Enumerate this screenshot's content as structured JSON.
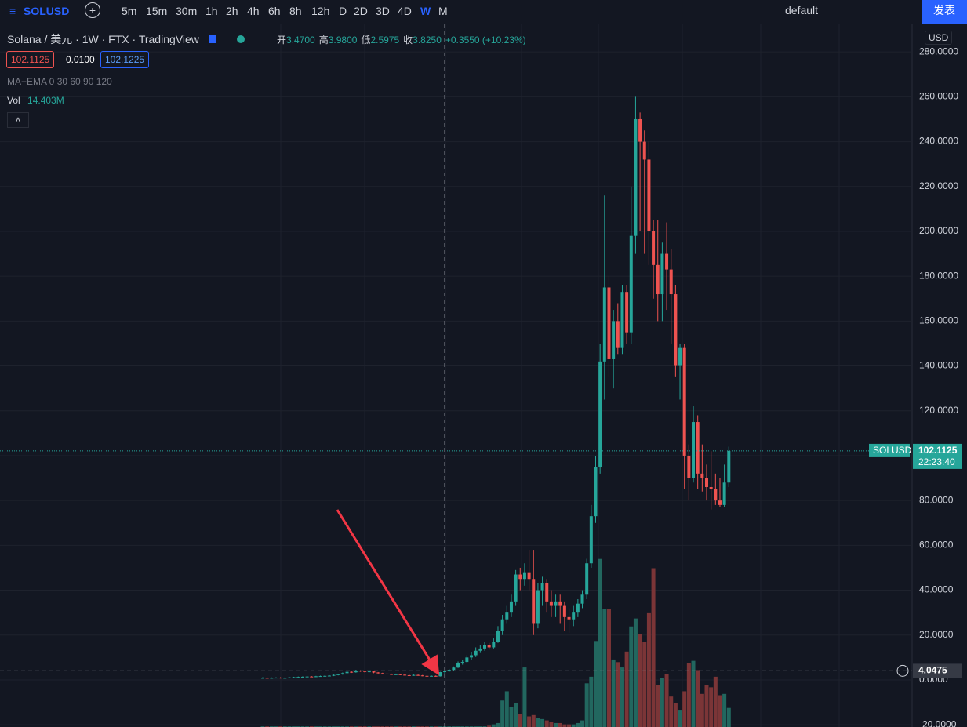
{
  "toolbar": {
    "symbol": "SOLUSD",
    "intervals": [
      "5m",
      "15m",
      "30m",
      "1h",
      "2h",
      "4h",
      "6h",
      "8h",
      "12h",
      "D",
      "2D",
      "3D",
      "4D",
      "W",
      "M"
    ],
    "layout_name": "default",
    "publish": "发表"
  },
  "legend": {
    "title": "Solana / 美元",
    "interval": "1W",
    "exchange": "FTX",
    "source": "TradingView",
    "ohlc": [
      {
        "label": "开",
        "value": "3.4700"
      },
      {
        "label": "高",
        "value": "3.9800"
      },
      {
        "label": "低",
        "value": "2.5975"
      },
      {
        "label": "收",
        "value": "3.8250"
      }
    ],
    "change": "+0.3550 (+10.23%)",
    "bid": "102.1125",
    "spread": "0.0100",
    "ask": "102.1225",
    "indicator": "MA+EMA 0 30 60 90 120",
    "volume_label": "Vol",
    "volume_value": "14.403M",
    "currency": "USD"
  },
  "chart_data": {
    "type": "candlestick",
    "symbol_tag": "SOLUSD",
    "last_price": 102.1125,
    "last_price_label": "102.1125",
    "countdown": "22:23:40",
    "crosshair_price": 4.0475,
    "crosshair_label": "4.0475",
    "crosshair_index": 41,
    "ylim": [
      -21,
      292.3
    ],
    "yticks": [
      {
        "value": -20,
        "label": "-20.0000"
      },
      {
        "value": 0,
        "label": "0.0000"
      },
      {
        "value": 20,
        "label": "20.0000"
      },
      {
        "value": 40,
        "label": "40.0000"
      },
      {
        "value": 60,
        "label": "60.0000"
      },
      {
        "value": 80,
        "label": "80.0000"
      },
      {
        "value": 100,
        "label": "100.0000"
      },
      {
        "value": 120,
        "label": "120.0000"
      },
      {
        "value": 140,
        "label": "140.0000"
      },
      {
        "value": 160,
        "label": "160.0000"
      },
      {
        "value": 180,
        "label": "180.0000"
      },
      {
        "value": 200,
        "label": "200.0000"
      },
      {
        "value": 220,
        "label": "220.0000"
      },
      {
        "value": 240,
        "label": "240.0000"
      },
      {
        "value": 260,
        "label": "260.0000"
      },
      {
        "value": 280,
        "label": "280.0000"
      }
    ],
    "up_color": "#26a69a",
    "down_color": "#ef5350",
    "vol_lim": [
      0,
      160
    ],
    "candles": [
      [
        0.8,
        1.2,
        0.6,
        0.9
      ],
      [
        0.9,
        1.1,
        0.6,
        0.8
      ],
      [
        0.8,
        1.1,
        0.6,
        0.9
      ],
      [
        0.9,
        1.2,
        0.7,
        1.0
      ],
      [
        1.0,
        1.2,
        0.6,
        0.8
      ],
      [
        0.8,
        1.1,
        0.6,
        0.9
      ],
      [
        0.9,
        1.3,
        0.7,
        1.1
      ],
      [
        1.1,
        1.4,
        0.9,
        1.2
      ],
      [
        1.2,
        1.5,
        1.0,
        1.3
      ],
      [
        1.3,
        1.6,
        1.1,
        1.4
      ],
      [
        1.4,
        1.7,
        1.2,
        1.5
      ],
      [
        1.5,
        1.7,
        1.2,
        1.4
      ],
      [
        1.4,
        1.8,
        1.2,
        1.6
      ],
      [
        1.6,
        1.9,
        1.4,
        1.7
      ],
      [
        1.7,
        2.0,
        1.5,
        1.8
      ],
      [
        1.8,
        2.1,
        1.6,
        1.9
      ],
      [
        1.9,
        2.4,
        1.7,
        2.2
      ],
      [
        2.2,
        2.7,
        2.0,
        2.5
      ],
      [
        2.5,
        3.3,
        2.3,
        3.0
      ],
      [
        3.0,
        3.9,
        2.8,
        3.6
      ],
      [
        3.6,
        3.8,
        3.1,
        3.4
      ],
      [
        3.4,
        4.5,
        3.2,
        4.1
      ],
      [
        4.1,
        4.3,
        3.6,
        3.9
      ],
      [
        3.9,
        4.1,
        3.3,
        3.6
      ],
      [
        3.6,
        4.0,
        3.4,
        3.8
      ],
      [
        3.8,
        4.0,
        3.0,
        3.3
      ],
      [
        3.3,
        3.5,
        2.8,
        3.0
      ],
      [
        3.0,
        3.2,
        2.6,
        2.8
      ],
      [
        2.8,
        3.0,
        2.4,
        2.6
      ],
      [
        2.6,
        2.8,
        2.2,
        2.4
      ],
      [
        2.4,
        2.8,
        2.2,
        2.5
      ],
      [
        2.5,
        2.7,
        2.1,
        2.3
      ],
      [
        2.3,
        2.5,
        1.9,
        2.1
      ],
      [
        2.1,
        2.3,
        1.8,
        2.0
      ],
      [
        2.0,
        2.4,
        1.8,
        2.2
      ],
      [
        2.2,
        2.4,
        1.8,
        2.0
      ],
      [
        2.0,
        2.2,
        1.6,
        1.8
      ],
      [
        1.8,
        2.0,
        1.5,
        1.7
      ],
      [
        1.7,
        2.0,
        1.5,
        1.8
      ],
      [
        1.8,
        2.0,
        1.4,
        1.6
      ],
      [
        1.6,
        3.6,
        1.5,
        3.47
      ],
      [
        3.47,
        3.98,
        2.5975,
        3.825
      ],
      [
        3.8,
        4.9,
        3.6,
        4.5
      ],
      [
        4.5,
        6.0,
        4.2,
        5.5
      ],
      [
        5.5,
        8.2,
        5.3,
        7.5
      ],
      [
        7.5,
        9.0,
        6.8,
        8.0
      ],
      [
        8.0,
        11.0,
        7.6,
        10.0
      ],
      [
        10.0,
        12.5,
        9.0,
        11.0
      ],
      [
        11.0,
        14.5,
        10.2,
        13.0
      ],
      [
        13.0,
        15.5,
        12.0,
        14.0
      ],
      [
        14.0,
        17.0,
        13.0,
        15.5
      ],
      [
        15.5,
        16.5,
        13.5,
        14.5
      ],
      [
        14.5,
        18.5,
        14.0,
        17.0
      ],
      [
        17.0,
        24.0,
        16.5,
        22.0
      ],
      [
        22.0,
        29.0,
        20.0,
        27.0
      ],
      [
        27.0,
        33.0,
        25.0,
        30.0
      ],
      [
        30.0,
        38.0,
        28.0,
        35.0
      ],
      [
        35.0,
        49.0,
        33.0,
        47.0
      ],
      [
        47.0,
        50.0,
        40.0,
        45.0
      ],
      [
        45.0,
        52.0,
        42.0,
        48.0
      ],
      [
        48.0,
        58.0,
        40.0,
        45.0
      ],
      [
        45.0,
        58.0,
        20.0,
        25.0
      ],
      [
        25.0,
        43.0,
        23.0,
        40.0
      ],
      [
        40.0,
        46.0,
        33.0,
        43.0
      ],
      [
        43.0,
        45.0,
        30.0,
        35.0
      ],
      [
        35.0,
        40.0,
        28.0,
        33.0
      ],
      [
        33.0,
        38.0,
        28.0,
        35.0
      ],
      [
        35.0,
        38.0,
        25.0,
        33.0
      ],
      [
        33.0,
        35.0,
        22.0,
        28.0
      ],
      [
        28.0,
        32.0,
        21.0,
        27.0
      ],
      [
        27.0,
        33.0,
        24.0,
        30.0
      ],
      [
        30.0,
        36.0,
        28.0,
        34.0
      ],
      [
        34.0,
        40.0,
        32.0,
        38.0
      ],
      [
        38.0,
        54.0,
        36.0,
        52.0
      ],
      [
        52.0,
        78.0,
        50.0,
        73.0
      ],
      [
        73.0,
        100.0,
        70.0,
        95.0
      ],
      [
        95.0,
        150.0,
        92.0,
        142.0
      ],
      [
        142.0,
        216.0,
        125.0,
        175.0
      ],
      [
        175.0,
        180.0,
        135.0,
        143.0
      ],
      [
        143.0,
        165.0,
        130.0,
        160.0
      ],
      [
        160.0,
        168.0,
        145.0,
        148.0
      ],
      [
        148.0,
        176.0,
        145.0,
        173.0
      ],
      [
        173.0,
        176.0,
        150.0,
        155.0
      ],
      [
        155.0,
        220.0,
        150.0,
        198.0
      ],
      [
        198.0,
        260.0,
        190.0,
        250.0
      ],
      [
        250.0,
        253.0,
        200.0,
        240.0
      ],
      [
        240.0,
        245.0,
        190.0,
        232.0
      ],
      [
        232.0,
        240.0,
        185.0,
        200.0
      ],
      [
        200.0,
        205.0,
        170.0,
        185.0
      ],
      [
        185.0,
        205.0,
        160.0,
        172.0
      ],
      [
        172.0,
        195.0,
        160.0,
        190.0
      ],
      [
        190.0,
        204.0,
        165.0,
        183.0
      ],
      [
        183.0,
        192.0,
        150.0,
        172.0
      ],
      [
        172.0,
        176.0,
        135.0,
        140.0
      ],
      [
        140.0,
        150.0,
        125.0,
        148.0
      ],
      [
        148.0,
        150.0,
        85.0,
        100.0
      ],
      [
        100.0,
        105.0,
        80.0,
        90.0
      ],
      [
        90.0,
        122.0,
        88.0,
        115.0
      ],
      [
        115.0,
        118.0,
        85.0,
        92.0
      ],
      [
        92.0,
        105.0,
        84.0,
        90.0
      ],
      [
        90.0,
        96.0,
        80.0,
        86.0
      ],
      [
        86.0,
        102.0,
        76.0,
        85.0
      ],
      [
        85.0,
        92.0,
        78.0,
        80.0
      ],
      [
        80.0,
        90.0,
        77.0,
        78.0
      ],
      [
        78.0,
        96.0,
        77.0,
        88.0
      ],
      [
        88.0,
        104.0,
        86.0,
        102.1125
      ]
    ],
    "volumes": [
      0.5,
      0.5,
      0.5,
      0.5,
      0.5,
      0.5,
      0.5,
      0.5,
      0.5,
      0.5,
      0.5,
      0.5,
      0.5,
      0.5,
      0.5,
      0.5,
      0.5,
      0.5,
      0.5,
      0.5,
      0.5,
      0.5,
      0.5,
      0.5,
      0.5,
      0.5,
      0.5,
      0.5,
      0.5,
      0.5,
      0.5,
      0.5,
      0.5,
      0.5,
      0.5,
      0.5,
      0.5,
      0.5,
      0.5,
      0.5,
      0.5,
      0.5,
      0.5,
      0.5,
      0.5,
      0.5,
      0.5,
      0.5,
      0.5,
      0.5,
      0.5,
      1,
      2,
      3,
      20,
      27,
      15,
      18,
      10,
      45,
      8,
      9,
      7,
      6,
      5,
      4,
      3,
      3,
      2,
      2,
      2,
      3,
      5,
      33,
      38,
      65,
      127,
      89,
      89,
      51,
      49,
      45,
      57,
      76,
      82,
      70,
      64,
      86,
      120,
      32,
      37,
      40,
      23,
      18,
      13,
      27,
      48,
      50,
      43,
      25,
      32,
      30,
      38,
      24,
      25,
      14.403
    ]
  }
}
